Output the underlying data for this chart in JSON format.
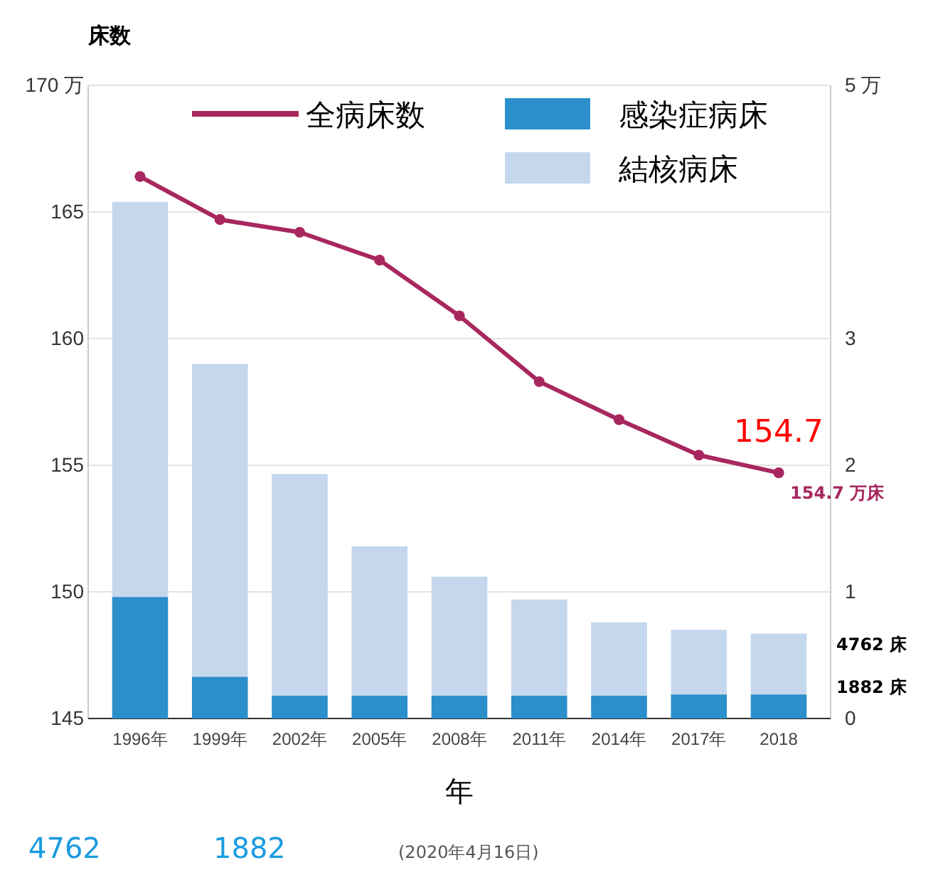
{
  "chart_data": {
    "type": "bar",
    "title": "床数",
    "xlabel": "年",
    "stacked": true,
    "categories": [
      "1996年",
      "1999年",
      "2002年",
      "2005年",
      "2008年",
      "2011年",
      "2014年",
      "2017年",
      "2018"
    ],
    "series": [
      {
        "name": "全病床数",
        "type": "line",
        "color": "#a8275f",
        "values": [
          166.4,
          164.7,
          164.2,
          163.1,
          160.9,
          158.3,
          156.8,
          155.4,
          154.7
        ]
      },
      {
        "name": "感染症病床",
        "type": "bar",
        "axis": "y2",
        "color": "#2a8fcb",
        "values": [
          0.96,
          0.33,
          0.18,
          0.18,
          0.18,
          0.18,
          0.18,
          0.19,
          0.19
        ]
      },
      {
        "name": "結核病床",
        "type": "bar",
        "axis": "y2",
        "color": "#c5d7ed",
        "values": [
          3.12,
          2.47,
          1.75,
          1.18,
          0.94,
          0.76,
          0.58,
          0.51,
          0.48
        ]
      }
    ],
    "ylim": [
      145,
      170
    ],
    "yticks": [
      145,
      150,
      155,
      160,
      165,
      {
        "value": 170,
        "label": "170 万"
      }
    ],
    "y2lim": [
      0,
      5
    ],
    "y2ticks": [
      0,
      1,
      2,
      3,
      {
        "value": 5,
        "label": "5 万"
      }
    ],
    "grid": "y",
    "legend": "top",
    "marker": "circle",
    "line_style": "solid",
    "annotations": [
      {
        "text": "154.7 万床",
        "x": "2018",
        "y": 154.7
      },
      {
        "text": "154.7",
        "x": "2018",
        "y": 154.7
      },
      "4762 床",
      "1882 床",
      "4762",
      "1882",
      "(2020年4月16日)"
    ]
  }
}
